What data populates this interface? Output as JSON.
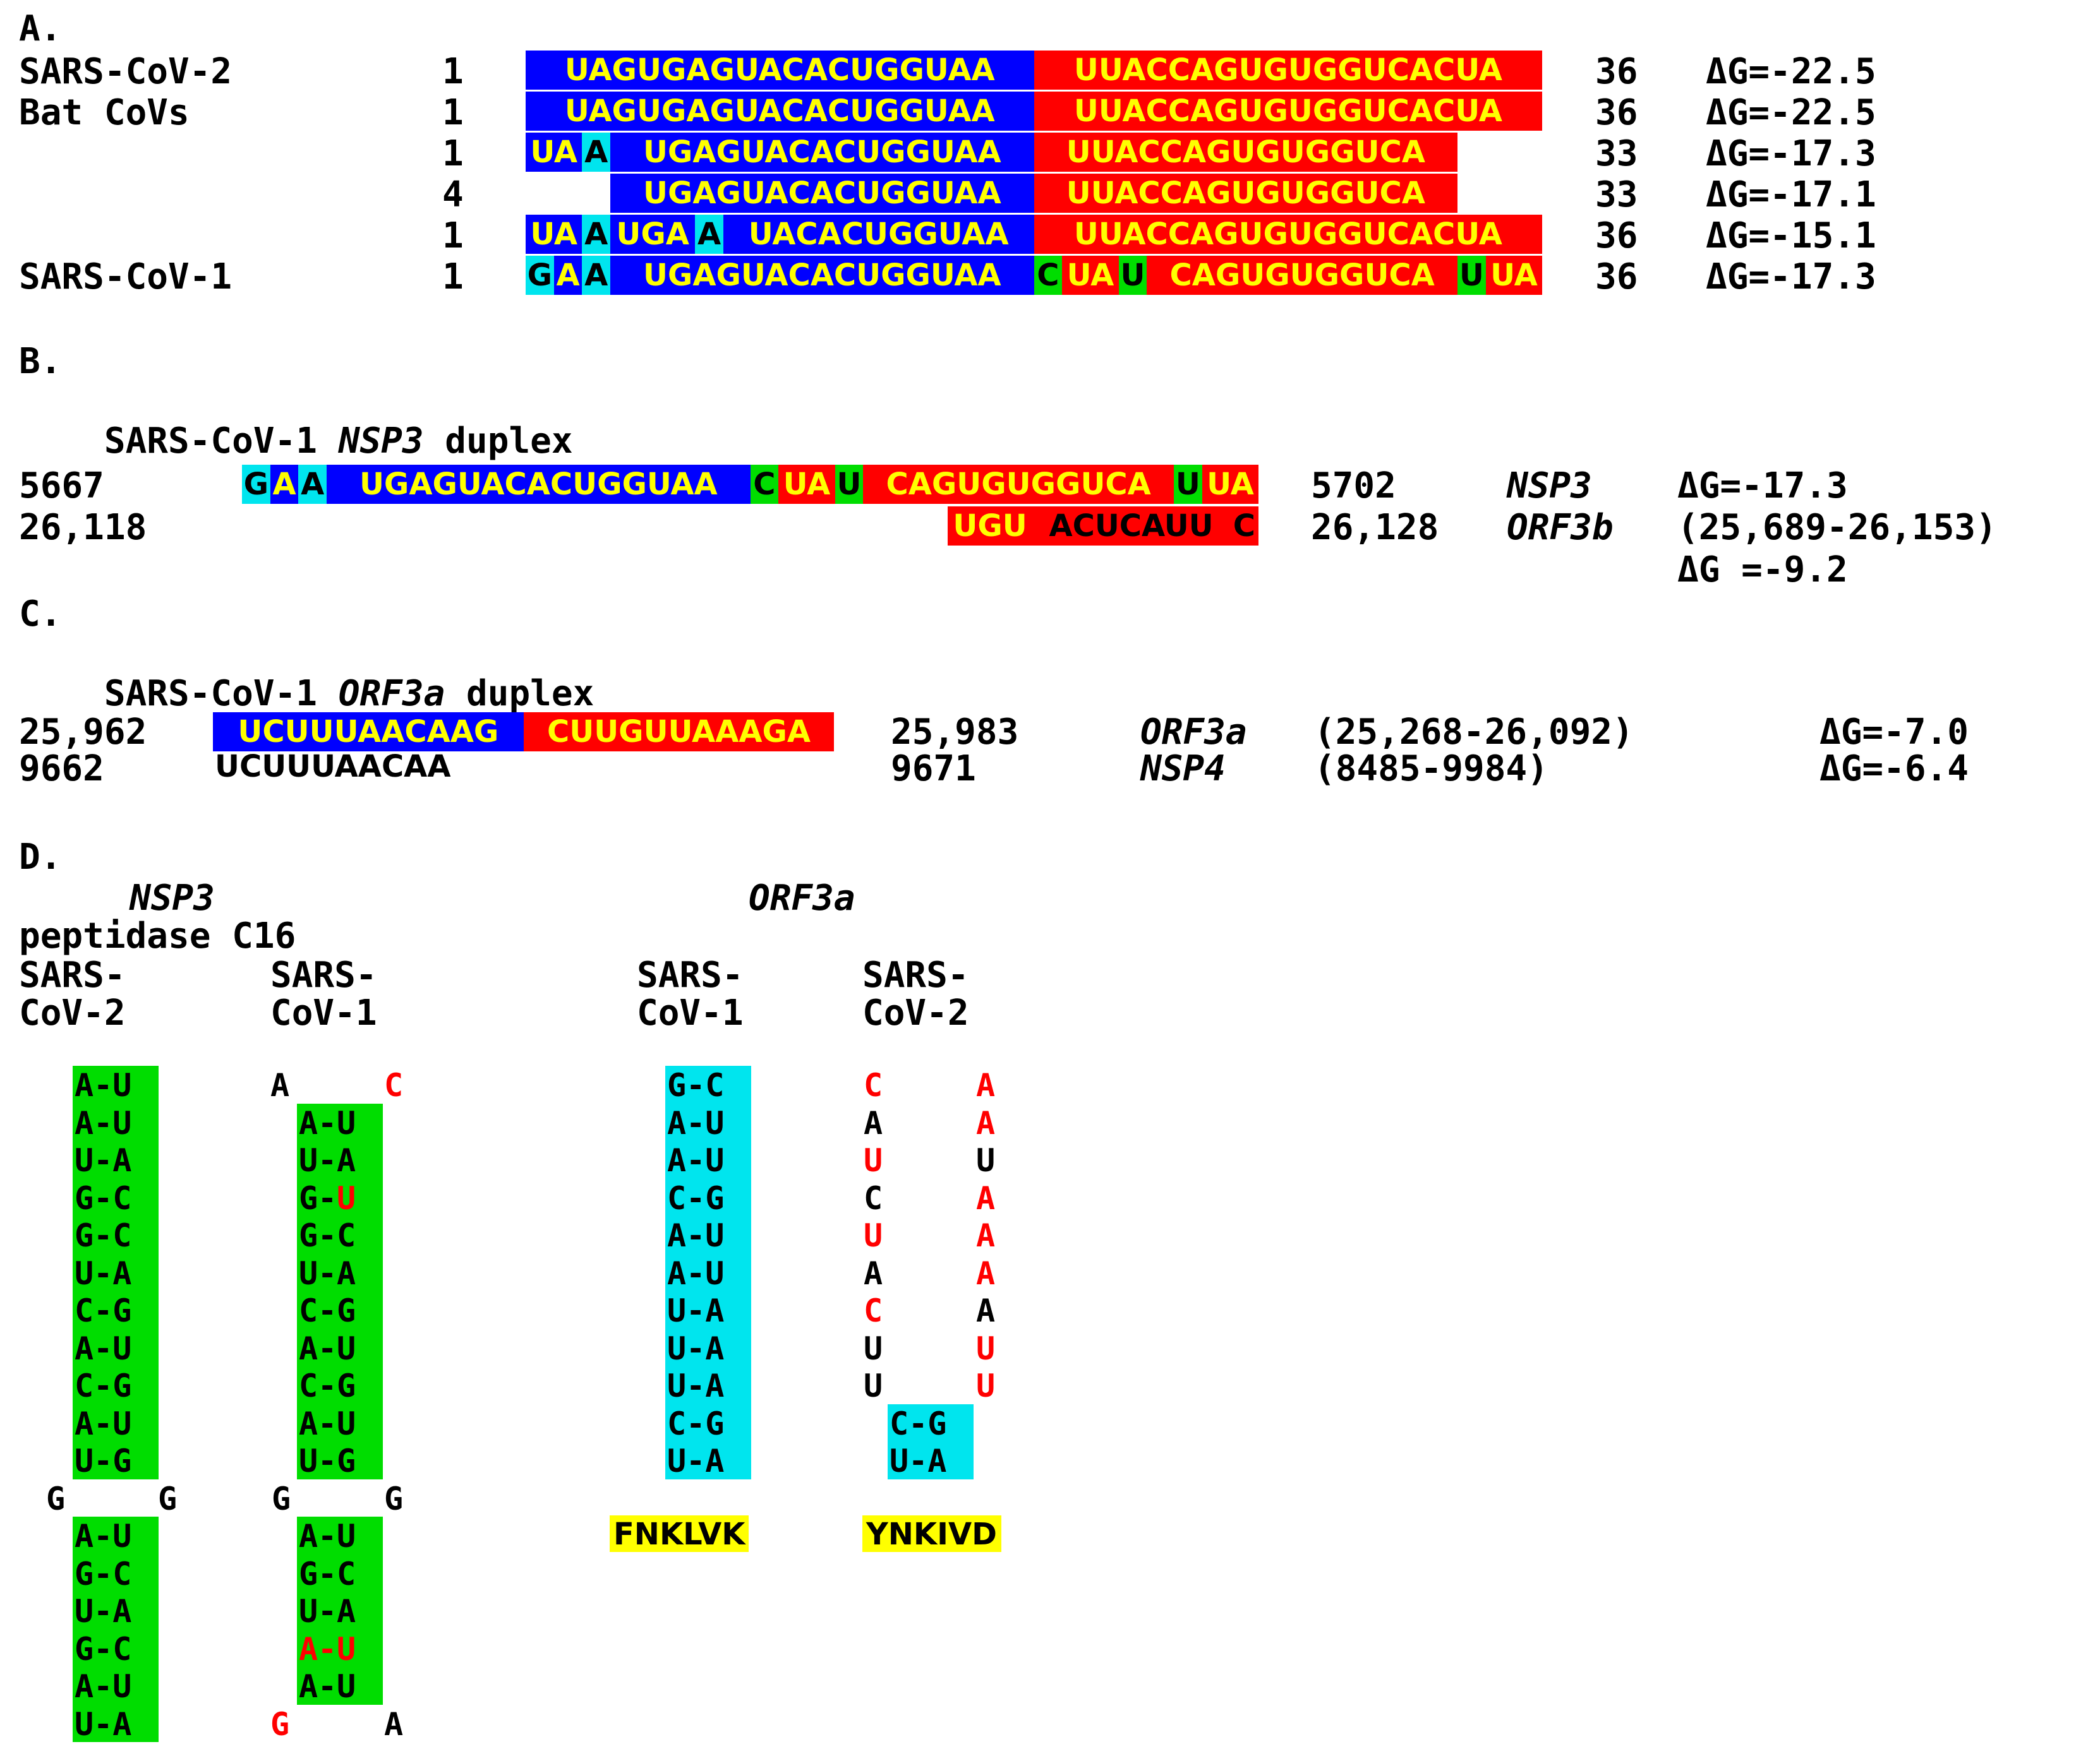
{
  "panelA": {
    "label": "A.",
    "rows": [
      {
        "name": "SARS-CoV-2",
        "start": "1",
        "end": "36",
        "dg": "ΔG=-22.5",
        "segs": [
          {
            "t": "UAGUGAGUACACUGGUAA",
            "c": "blue"
          },
          {
            "t": "UUACCAGUGUGGUCACUA",
            "c": "red"
          }
        ]
      },
      {
        "name": "Bat CoVs",
        "start": "1",
        "end": "36",
        "dg": "ΔG=-22.5",
        "segs": [
          {
            "t": "UAGUGAGUACACUGGUAA",
            "c": "blue"
          },
          {
            "t": "UUACCAGUGUGGUCACUA",
            "c": "red"
          }
        ]
      },
      {
        "name": "",
        "start": "1",
        "end": "33",
        "dg": "ΔG=-17.3",
        "segs": [
          {
            "t": "UA",
            "c": "blue"
          },
          {
            "t": "A",
            "c": "cyan"
          },
          {
            "t": "UGAGUACACUGGUAA",
            "c": "blue"
          },
          {
            "t": "UUACCAGUGUGGUCA",
            "c": "red"
          }
        ]
      },
      {
        "name": "",
        "start": "4",
        "end": "33",
        "dg": "ΔG=-17.1",
        "offset": 3,
        "segs": [
          {
            "t": "UGAGUACACUGGUAA",
            "c": "blue"
          },
          {
            "t": "UUACCAGUGUGGUCA",
            "c": "red"
          }
        ]
      },
      {
        "name": "",
        "start": "1",
        "end": "36",
        "dg": "ΔG=-15.1",
        "segs": [
          {
            "t": "UA",
            "c": "blue"
          },
          {
            "t": "A",
            "c": "cyan"
          },
          {
            "t": "UGA",
            "c": "blue"
          },
          {
            "t": "A",
            "c": "cyan"
          },
          {
            "t": "UACACUGGUAA",
            "c": "blue"
          },
          {
            "t": "UUACCAGUGUGGUCACUA",
            "c": "red"
          }
        ]
      },
      {
        "name": "SARS-CoV-1",
        "start": "1",
        "end": "36",
        "dg": "ΔG=-17.3",
        "segs": [
          {
            "t": "G",
            "c": "cyan"
          },
          {
            "t": "A",
            "c": "blue"
          },
          {
            "t": "A",
            "c": "cyan"
          },
          {
            "t": "UGAGUACACUGGUAA",
            "c": "blue"
          },
          {
            "t": "C",
            "c": "green"
          },
          {
            "t": "UA",
            "c": "red"
          },
          {
            "t": "U",
            "c": "green"
          },
          {
            "t": "CAGUGUGGUCA",
            "c": "red"
          },
          {
            "t": "U",
            "c": "green"
          },
          {
            "t": "UA",
            "c": "red"
          }
        ]
      }
    ]
  },
  "panelB": {
    "label": "B.",
    "title_pre": "SARS-CoV-1 ",
    "title_it": "NSP3",
    "title_post": " duplex",
    "row1": {
      "start": "5667",
      "end": "5702",
      "gene": "NSP3",
      "dg": "ΔG=-17.3",
      "segs": [
        {
          "t": "G",
          "c": "cyan"
        },
        {
          "t": "A",
          "c": "blue"
        },
        {
          "t": "A",
          "c": "cyan"
        },
        {
          "t": "UGAGUACACUGGUAA",
          "c": "blue"
        },
        {
          "t": "C",
          "c": "green"
        },
        {
          "t": "UA",
          "c": "red"
        },
        {
          "t": "U",
          "c": "green"
        },
        {
          "t": "CAGUGUGGUCA",
          "c": "red"
        },
        {
          "t": "U",
          "c": "green"
        },
        {
          "t": "UA",
          "c": "red"
        }
      ]
    },
    "row2": {
      "start": "26,118",
      "end": "26,128",
      "gene": "ORF3b",
      "range": "(25,689-26,153)",
      "dg": "ΔG =-9.2",
      "segs": [
        {
          "t": "UGU",
          "c": "red"
        },
        {
          "t": "ACUCAUU",
          "c": "red blk-mix"
        },
        {
          "t": "C",
          "c": "red blkc"
        }
      ]
    }
  },
  "panelC": {
    "label": "C.",
    "title_pre": "SARS-CoV-1 ",
    "title_it": "ORF3a",
    "title_post": " duplex",
    "row1": {
      "start": "25,962",
      "end": "25,983",
      "gene": "ORF3a",
      "range": "(25,268-26,092)",
      "dg": "ΔG=-7.0",
      "segs": [
        {
          "t": "UCUUUAACAAG",
          "c": "blue"
        },
        {
          "t": "CUUGUUAAAGA",
          "c": "red"
        }
      ]
    },
    "row2": {
      "start": "9662",
      "seq": "UCUUUAACAA",
      "end": "9671",
      "gene": "NSP4",
      "range": "(8485-9984)",
      "dg": "ΔG=-6.4"
    }
  },
  "panelD": {
    "label": "D.",
    "nsp3_title": "NSP3",
    "nsp3_sub": "peptidase C16",
    "orf3a_title": "ORF3a",
    "col_heads": [
      {
        "l1": "SARS-",
        "l2": "CoV-2"
      },
      {
        "l1": "SARS-",
        "l2": "CoV-1"
      },
      {
        "l1": "SARS-",
        "l2": "CoV-1"
      },
      {
        "l1": "SARS-",
        "l2": "CoV-2"
      }
    ],
    "nsp3_cov2_top": [
      "A-U",
      "A-U",
      "U-A",
      "G-C",
      "G-C",
      "U-A",
      "C-G",
      "A-U",
      "C-G",
      "A-U",
      "U-G"
    ],
    "nsp3_cov2_loop": [
      "G",
      "G"
    ],
    "nsp3_cov2_bottom": [
      "A-U",
      "G-C",
      "U-A",
      "G-C",
      "A-U",
      "U-A"
    ],
    "nsp3_cov1_first": [
      "A",
      "C"
    ],
    "nsp3_cov1_top": [
      {
        "a": "A",
        "b": "U"
      },
      {
        "a": "U",
        "b": "A"
      },
      {
        "a": "G",
        "b": "U",
        "rb": true
      },
      {
        "a": "G",
        "b": "C"
      },
      {
        "a": "U",
        "b": "A"
      },
      {
        "a": "C",
        "b": "G"
      },
      {
        "a": "A",
        "b": "U"
      },
      {
        "a": "C",
        "b": "G"
      },
      {
        "a": "A",
        "b": "U"
      },
      {
        "a": "U",
        "b": "G"
      }
    ],
    "nsp3_cov1_loop": [
      "G",
      "G"
    ],
    "nsp3_cov1_bottom": [
      {
        "a": "A",
        "b": "U"
      },
      {
        "a": "G",
        "b": "C"
      },
      {
        "a": "U",
        "b": "A"
      },
      {
        "a": "A",
        "b": "U",
        "ra": true,
        "rb": true
      },
      {
        "a": "A",
        "b": "U"
      }
    ],
    "nsp3_cov1_last": [
      "G",
      "A"
    ],
    "orf3a_cov1": [
      "G-C",
      "A-U",
      "A-U",
      "C-G",
      "A-U",
      "A-U",
      "U-A",
      "U-A",
      "U-A",
      "C-G",
      "U-A"
    ],
    "orf3a_cov2_unpaired": [
      {
        "a": "C",
        "b": "A",
        "ra": true,
        "rb": true
      },
      {
        "a": "A",
        "b": "A",
        "rb": true
      },
      {
        "a": "U",
        "b": "U",
        "ra": true
      },
      {
        "a": "C",
        "b": "A",
        "rb": true
      },
      {
        "a": "U",
        "b": "A",
        "ra": true,
        "rb": true
      },
      {
        "a": "A",
        "b": "A",
        "rb": true
      },
      {
        "a": "C",
        "b": "A",
        "ra": true
      },
      {
        "a": "U",
        "b": "U",
        "rb": true
      },
      {
        "a": "U",
        "b": "U",
        "rb": true
      }
    ],
    "orf3a_cov2_paired": [
      "C-G",
      "U-A"
    ],
    "motif_cov1": {
      "hl": "FNKLV",
      "rest": "K"
    },
    "motif_cov2": {
      "hl": "YNKIV",
      "rest": "D"
    }
  }
}
